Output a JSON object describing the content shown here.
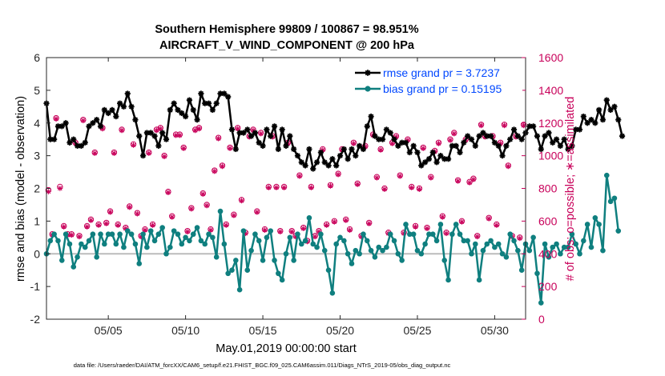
{
  "chart_data": {
    "type": "line",
    "title": "Southern Hemisphere 99809 / 100867 = 98.951%",
    "subtitle": "AIRCRAFT_V_WIND_COMPONENT @ 200 hPa",
    "xlabel": "May.01,2019 00:00:00 start",
    "ylabel": "rmse and bias (model - observation)",
    "ylabel_right": "# of obs: o=possible; ∗=assimilated",
    "footer": "data file: /Users/raeder/DAI/ATM_forcXX/CAM6_setup/f.e21.FHIST_BGC.f09_025.CAM6assim.011/Diags_NTrS_2019-05/obs_diag_output.nc",
    "xlim": [
      1,
      32
    ],
    "ylim": [
      -2,
      6
    ],
    "ylim_right": [
      0,
      1600
    ],
    "x_ticks": [
      5,
      10,
      15,
      20,
      25,
      30
    ],
    "x_tick_labels": [
      "05/05",
      "05/10",
      "05/15",
      "05/20",
      "05/25",
      "05/30"
    ],
    "y_ticks": [
      -2,
      -1,
      0,
      1,
      2,
      3,
      4,
      5,
      6
    ],
    "y_tick_labels": [
      "-2",
      "-1",
      "0",
      "1",
      "2",
      "3",
      "4",
      "5",
      "6"
    ],
    "y_right_ticks": [
      0,
      200,
      400,
      600,
      800,
      1000,
      1200,
      1400,
      1600
    ],
    "y_right_tick_labels": [
      "0",
      "200",
      "400",
      "600",
      "800",
      "1000",
      "1200",
      "1400",
      "1600"
    ],
    "zero_line": 0,
    "legend_position": "top-right",
    "colors": {
      "rmse": "#000000",
      "bias": "#0f7f7f",
      "obs": "#c8005a",
      "zero": "#bbbbbb",
      "legend_text": "#0047ff"
    },
    "series": [
      {
        "name": "rmse grand pr = 3.7237",
        "t0": 1.0,
        "dt": 0.25,
        "values": [
          4.6,
          3.5,
          3.5,
          3.9,
          3.9,
          4.0,
          3.4,
          3.5,
          3.3,
          3.3,
          3.4,
          3.9,
          4.0,
          4.1,
          3.9,
          4.4,
          4.3,
          4.4,
          4.2,
          4.6,
          4.5,
          4.9,
          4.5,
          4.1,
          3.6,
          3.0,
          3.7,
          3.7,
          3.6,
          3.3,
          3.7,
          3.5,
          4.4,
          4.6,
          4.4,
          4.3,
          4.2,
          4.7,
          4.4,
          4.1,
          4.9,
          4.6,
          4.6,
          4.4,
          4.6,
          4.9,
          4.9,
          4.8,
          3.8,
          3.2,
          3.7,
          3.7,
          3.8,
          3.6,
          3.7,
          3.4,
          3.3,
          3.8,
          3.6,
          3.9,
          3.2,
          3.8,
          3.3,
          3.6,
          3.2,
          3.0,
          2.8,
          2.7,
          3.2,
          2.6,
          2.8,
          3.1,
          2.8,
          2.7,
          2.9,
          2.7,
          3.0,
          3.2,
          2.9,
          3.2,
          3.0,
          3.3,
          3.2,
          3.9,
          4.2,
          3.6,
          3.5,
          3.5,
          3.8,
          3.7,
          3.5,
          3.3,
          3.4,
          3.4,
          3.1,
          3.3,
          3.1,
          2.7,
          2.8,
          2.9,
          3.1,
          2.8,
          3.0,
          2.9,
          2.9,
          3.3,
          3.3,
          3.1,
          3.4,
          3.6,
          3.5,
          3.3,
          3.6,
          3.7,
          3.6,
          3.6,
          3.4,
          3.3,
          3.0,
          3.3,
          3.5,
          3.8,
          3.6,
          3.5,
          3.7,
          3.9,
          3.9,
          3.6,
          3.2,
          3.6,
          3.7,
          3.4,
          3.5,
          3.3,
          3.5,
          3.2,
          3.3,
          3.8,
          3.8,
          4.2,
          4.0,
          4.1,
          4.0,
          4.4,
          4.1,
          4.7,
          4.4,
          4.5,
          4.1,
          3.6
        ]
      },
      {
        "name": "bias grand pr = 0.15195",
        "t0": 1.0,
        "dt": 0.25,
        "values": [
          0.0,
          0.4,
          0.6,
          0.4,
          -0.2,
          0.6,
          0.3,
          -0.4,
          -0.1,
          0.3,
          0.2,
          0.4,
          0.6,
          -0.1,
          0.6,
          0.3,
          0.6,
          0.6,
          0.3,
          0.6,
          0.2,
          0.7,
          0.6,
          0.3,
          -0.3,
          0.6,
          0.2,
          0.7,
          0.4,
          0.6,
          0.8,
          0.0,
          0.2,
          0.7,
          0.6,
          0.3,
          0.5,
          0.4,
          0.6,
          0.8,
          0.4,
          0.3,
          0.6,
          0.5,
          -0.1,
          1.3,
          0.3,
          -0.6,
          -0.5,
          -0.2,
          -1.1,
          0.7,
          -0.5,
          0.1,
          0.6,
          0.4,
          -0.2,
          0.5,
          0.7,
          -0.2,
          -0.6,
          -0.8,
          0.0,
          0.5,
          -0.2,
          0.6,
          0.3,
          0.4,
          1.1,
          0.3,
          0.2,
          0.6,
          0.1,
          -0.5,
          -1.2,
          0.3,
          0.5,
          0.4,
          0.0,
          -0.3,
          0.1,
          0.0,
          0.6,
          0.4,
          0.1,
          -0.1,
          0.2,
          0.1,
          0.2,
          0.6,
          0.4,
          0.0,
          -0.2,
          0.9,
          0.6,
          0.6,
          0.1,
          0.0,
          0.3,
          0.6,
          0.6,
          0.4,
          0.9,
          -0.2,
          -0.8,
          0.6,
          0.9,
          0.6,
          0.4,
          0.4,
          0.0,
          0.3,
          -0.8,
          0.1,
          0.3,
          0.4,
          0.2,
          0.3,
          0.0,
          -0.1,
          0.6,
          0.4,
          0.1,
          -0.5,
          0.3,
          0.1,
          0.5,
          -0.6,
          -1.5,
          0.3,
          -0.1,
          0.2,
          0.3,
          0.0,
          0.2,
          0.2,
          0.6,
          0.3,
          0.0,
          0.4,
          0.9,
          0.2,
          1.1,
          0.9,
          0.1,
          2.4,
          1.6,
          1.7,
          0.7
        ]
      },
      {
        "name": "obs possible",
        "marker": "o",
        "t0": 1.125,
        "dt": 0.25,
        "values": [
          790,
          520,
          1230,
          810,
          570,
          520,
          520,
          1080,
          510,
          1220,
          570,
          610,
          1020,
          580,
          1170,
          590,
          660,
          1020,
          580,
          1160,
          560,
          690,
          1070,
          650,
          510,
          550,
          1020,
          580,
          1160,
          1170,
          1000,
          780,
          630,
          1130,
          1130,
          1050,
          540,
          680,
          1160,
          1170,
          770,
          700,
          550,
          910,
          1110,
          940,
          580,
          1050,
          640,
          1170,
          730,
          530,
          1120,
          1160,
          660,
          1140,
          550,
          810,
          1120,
          810,
          540,
          810,
          1080,
          540,
          510,
          880,
          560,
          480,
          810,
          510,
          540,
          1040,
          580,
          820,
          600,
          890,
          1040,
          610,
          550,
          1080,
          830,
          510,
          1060,
          590,
          1130,
          870,
          1040,
          800,
          530,
          1080,
          1120,
          880,
          530,
          1100,
          810,
          570,
          800,
          1050,
          560,
          870,
          1030,
          1080,
          630,
          530,
          1100,
          1140,
          850,
          600,
          1100,
          840,
          860,
          510,
          1190,
          1120,
          620,
          1120,
          580,
          1080,
          1190,
          940,
          510,
          1120,
          500,
          1190,
          540,
          850,
          1130,
          810,
          1180,
          950,
          690,
          1110,
          840,
          560,
          990,
          1100,
          810,
          1010,
          620,
          1020,
          1210,
          930,
          580,
          0,
          0
        ]
      },
      {
        "name": "obs assimilated",
        "marker": "*",
        "t0": 1.125,
        "dt": 0.25,
        "values": [
          780,
          515,
          1225,
          800,
          565,
          515,
          515,
          1075,
          505,
          1215,
          565,
          605,
          1015,
          575,
          1165,
          585,
          655,
          1015,
          575,
          1155,
          555,
          685,
          1065,
          645,
          505,
          545,
          1015,
          575,
          1155,
          1165,
          995,
          775,
          625,
          1125,
          1125,
          1045,
          535,
          675,
          1155,
          1165,
          765,
          695,
          545,
          905,
          1105,
          935,
          575,
          1045,
          635,
          1165,
          725,
          525,
          1115,
          1155,
          655,
          1135,
          545,
          805,
          1115,
          805,
          535,
          805,
          1075,
          535,
          505,
          875,
          555,
          475,
          805,
          505,
          535,
          1035,
          575,
          815,
          595,
          885,
          1035,
          605,
          545,
          1075,
          825,
          505,
          1055,
          585,
          1125,
          865,
          1035,
          795,
          525,
          1075,
          1115,
          875,
          525,
          1095,
          805,
          565,
          795,
          1045,
          555,
          865,
          1025,
          1075,
          625,
          525,
          1095,
          1135,
          845,
          595,
          1095,
          835,
          855,
          505,
          1185,
          1115,
          615,
          1115,
          575,
          1075,
          1185,
          935,
          505,
          1115,
          495,
          1185,
          535,
          845,
          1125,
          805,
          1175,
          945,
          685,
          1105,
          835,
          555,
          985,
          1095,
          805,
          1005,
          615,
          1015,
          1205,
          925,
          575,
          0,
          0
        ]
      }
    ]
  }
}
